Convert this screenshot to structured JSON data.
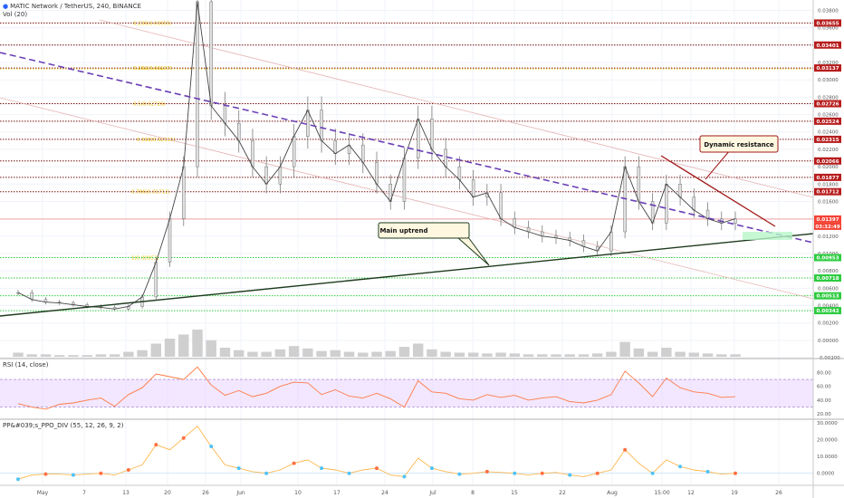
{
  "header": {
    "symbol_line": "MATIC Network / TetherUS, 240, BINANCE",
    "volume_label": "Vol (20)",
    "rsi_label": "RSI (14, close)",
    "ppo_label": "PP&#039;s_PPO_DIV (55, 12, 26, 9, 2)"
  },
  "colors": {
    "candle": "#e0e0e0",
    "price_line": "#ff5a4a",
    "resistance_level": "#c62828",
    "support_level": "#2ecc40",
    "fib_level": "#e6c200",
    "trend_dashed": "#6a3fb5",
    "uptrend": "#1e3b1e",
    "rsi_band": "#e9d7ff",
    "rsi_line": "#ff7a45",
    "ppo_line": "#ffb74d"
  },
  "chart_data": {
    "type": "line",
    "title": "MATIC Network / TetherUS, 240, BINANCE",
    "x_tick_labels": [
      "May",
      "7",
      "13",
      "20",
      "26",
      "Jun",
      "10",
      "17",
      "24",
      "Jul",
      "8",
      "15",
      "22",
      "Aug",
      "15:00",
      "12",
      "19",
      "26"
    ],
    "price_axis": {
      "scale": "linear",
      "range": [
        -0.0021,
        0.0392
      ],
      "tick_labels": [
        "0.03800",
        "0.03600",
        "0.03400",
        "0.03200",
        "0.03000",
        "0.02800",
        "0.02600",
        "0.02400",
        "0.02200",
        "0.02000",
        "0.01800",
        "0.01600",
        "0.01400",
        "0.01200",
        "0.01000",
        "0.00800",
        "0.00600",
        "0.00400",
        "0.00200",
        "0.00000",
        "-0.00200"
      ]
    },
    "resistance_levels": [
      0.03655,
      0.03401,
      0.03137,
      0.02726,
      0.02524,
      0.02315,
      0.02066,
      0.01877,
      0.01712
    ],
    "resistance_labels": [
      "0.03655",
      "0.03401",
      "0.03137",
      "0.02726",
      "0.02524",
      "0.02315",
      "0.02066",
      "0.01877",
      "0.01712"
    ],
    "support_levels": [
      0.00953,
      0.00718,
      0.00513,
      0.00342
    ],
    "support_labels": [
      "0.00953",
      "0.00718",
      "0.00513",
      "0.00342"
    ],
    "current_price": 0.01397,
    "current_price_label": "0.01397",
    "countdown_label": "03:32:49",
    "fib_levels": [
      {
        "value": 0.03655,
        "label": "0.236(0.03655)"
      },
      {
        "value": 0.03137,
        "label": "0.382(0.03137)"
      },
      {
        "value": 0.02726,
        "label": "0.5(0.02726)"
      },
      {
        "value": 0.02315,
        "label": "0.618(0.02315)"
      },
      {
        "value": 0.01712,
        "label": "0.786(0.01712)"
      },
      {
        "value": 0.00953,
        "label": "1(0.00953)"
      }
    ],
    "price_series": {
      "name": "",
      "values": [
        0.0055,
        0.0047,
        0.0044,
        0.0043,
        0.0041,
        0.0039,
        0.0038,
        0.0036,
        0.0039,
        0.005,
        0.009,
        0.014,
        0.02,
        0.039,
        0.027,
        0.025,
        0.023,
        0.02,
        0.018,
        0.02,
        0.0235,
        0.0265,
        0.023,
        0.0215,
        0.0225,
        0.0205,
        0.018,
        0.016,
        0.021,
        0.0255,
        0.022,
        0.02,
        0.0185,
        0.0165,
        0.017,
        0.014,
        0.013,
        0.0125,
        0.012,
        0.0118,
        0.0115,
        0.0108,
        0.0103,
        0.0125,
        0.02,
        0.016,
        0.0135,
        0.018,
        0.0165,
        0.015,
        0.014,
        0.0135,
        0.014
      ]
    },
    "rsi": {
      "name": "RSI (14, close)",
      "ylim": [
        15,
        95
      ],
      "band": [
        30,
        70
      ],
      "tick_labels": [
        "80.00",
        "60.00",
        "40.00",
        "20.00"
      ],
      "values": [
        35,
        30,
        27,
        34,
        36,
        40,
        43,
        31,
        48,
        58,
        78,
        74,
        70,
        88,
        62,
        47,
        54,
        45,
        50,
        60,
        66,
        65,
        48,
        55,
        46,
        43,
        50,
        42,
        30,
        68,
        52,
        50,
        42,
        40,
        48,
        44,
        47,
        40,
        43,
        45,
        38,
        36,
        40,
        48,
        82,
        65,
        45,
        72,
        58,
        52,
        50,
        44,
        45
      ]
    },
    "ppo": {
      "name": "PP&#039;s_PPO_DIV (55, 12, 26, 9, 2)",
      "ylim": [
        -5,
        30
      ],
      "tick_labels": [
        "30.0000",
        "20.0000",
        "10.0000",
        "0.0000"
      ],
      "values": [
        -3.5,
        -1,
        -0.5,
        -0.5,
        -1,
        -0.5,
        0,
        -1,
        2,
        5,
        17,
        14,
        21,
        28,
        16,
        5,
        3,
        1,
        0,
        2,
        6,
        8,
        3,
        2,
        0,
        2,
        3,
        -1,
        -2,
        9,
        3,
        1,
        -0.5,
        0,
        1,
        0.5,
        0,
        -1,
        0,
        0.5,
        -1,
        -2,
        0,
        2,
        14,
        6,
        0,
        8,
        4,
        2,
        1,
        -0.5,
        0
      ]
    },
    "volume": {
      "name": "Vol (20)",
      "values": [
        0.5,
        0.3,
        0.3,
        0.2,
        0.2,
        0.2,
        0.3,
        0.3,
        0.6,
        0.8,
        1.6,
        2.2,
        2.7,
        3.3,
        2.0,
        1.1,
        0.8,
        0.6,
        0.6,
        0.9,
        1.3,
        1.0,
        0.7,
        0.8,
        0.6,
        0.5,
        0.6,
        0.7,
        1.2,
        1.6,
        0.9,
        0.6,
        0.5,
        0.5,
        0.4,
        0.5,
        0.4,
        0.3,
        0.3,
        0.3,
        0.3,
        0.3,
        0.4,
        0.6,
        1.8,
        1.0,
        0.6,
        1.1,
        0.6,
        0.5,
        0.4,
        0.3,
        0.3
      ]
    },
    "annotations": [
      {
        "text": "Dynamic resistance"
      },
      {
        "text": "Main uptrend"
      }
    ],
    "grid": true
  }
}
